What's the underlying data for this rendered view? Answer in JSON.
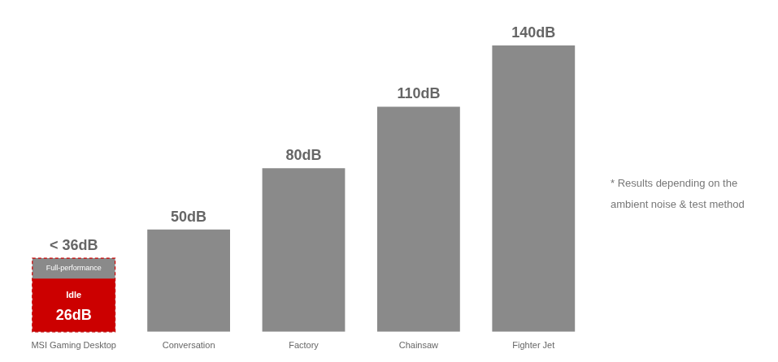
{
  "chart_data": {
    "type": "bar",
    "categories": [
      "MSI Gaming Desktop",
      "Conversation",
      "Factory",
      "Chainsaw",
      "Fighter Jet"
    ],
    "series": [
      {
        "color": "#8a8a8a",
        "values": [
          36,
          50,
          80,
          110,
          140
        ],
        "value_labels": [
          "< 36dB",
          "50dB",
          "80dB",
          "110dB",
          "140dB"
        ]
      },
      {
        "color": "#cc0000",
        "values": [
          26,
          null,
          null,
          null,
          null
        ],
        "value_labels": [
          "26dB",
          null,
          null,
          null,
          null
        ]
      }
    ],
    "annotations": [
      {
        "text": "Full-performance",
        "x": "MSI Gaming Desktop",
        "series": 0
      },
      {
        "text": "Idle",
        "x": "MSI Gaming Desktop",
        "series": 1
      },
      {
        "text": "* Results depending on the\nambient noise & test method"
      }
    ],
    "ylim": [
      0,
      158.2
    ],
    "tick_labels": "x",
    "grid": false,
    "data_labels": true
  }
}
